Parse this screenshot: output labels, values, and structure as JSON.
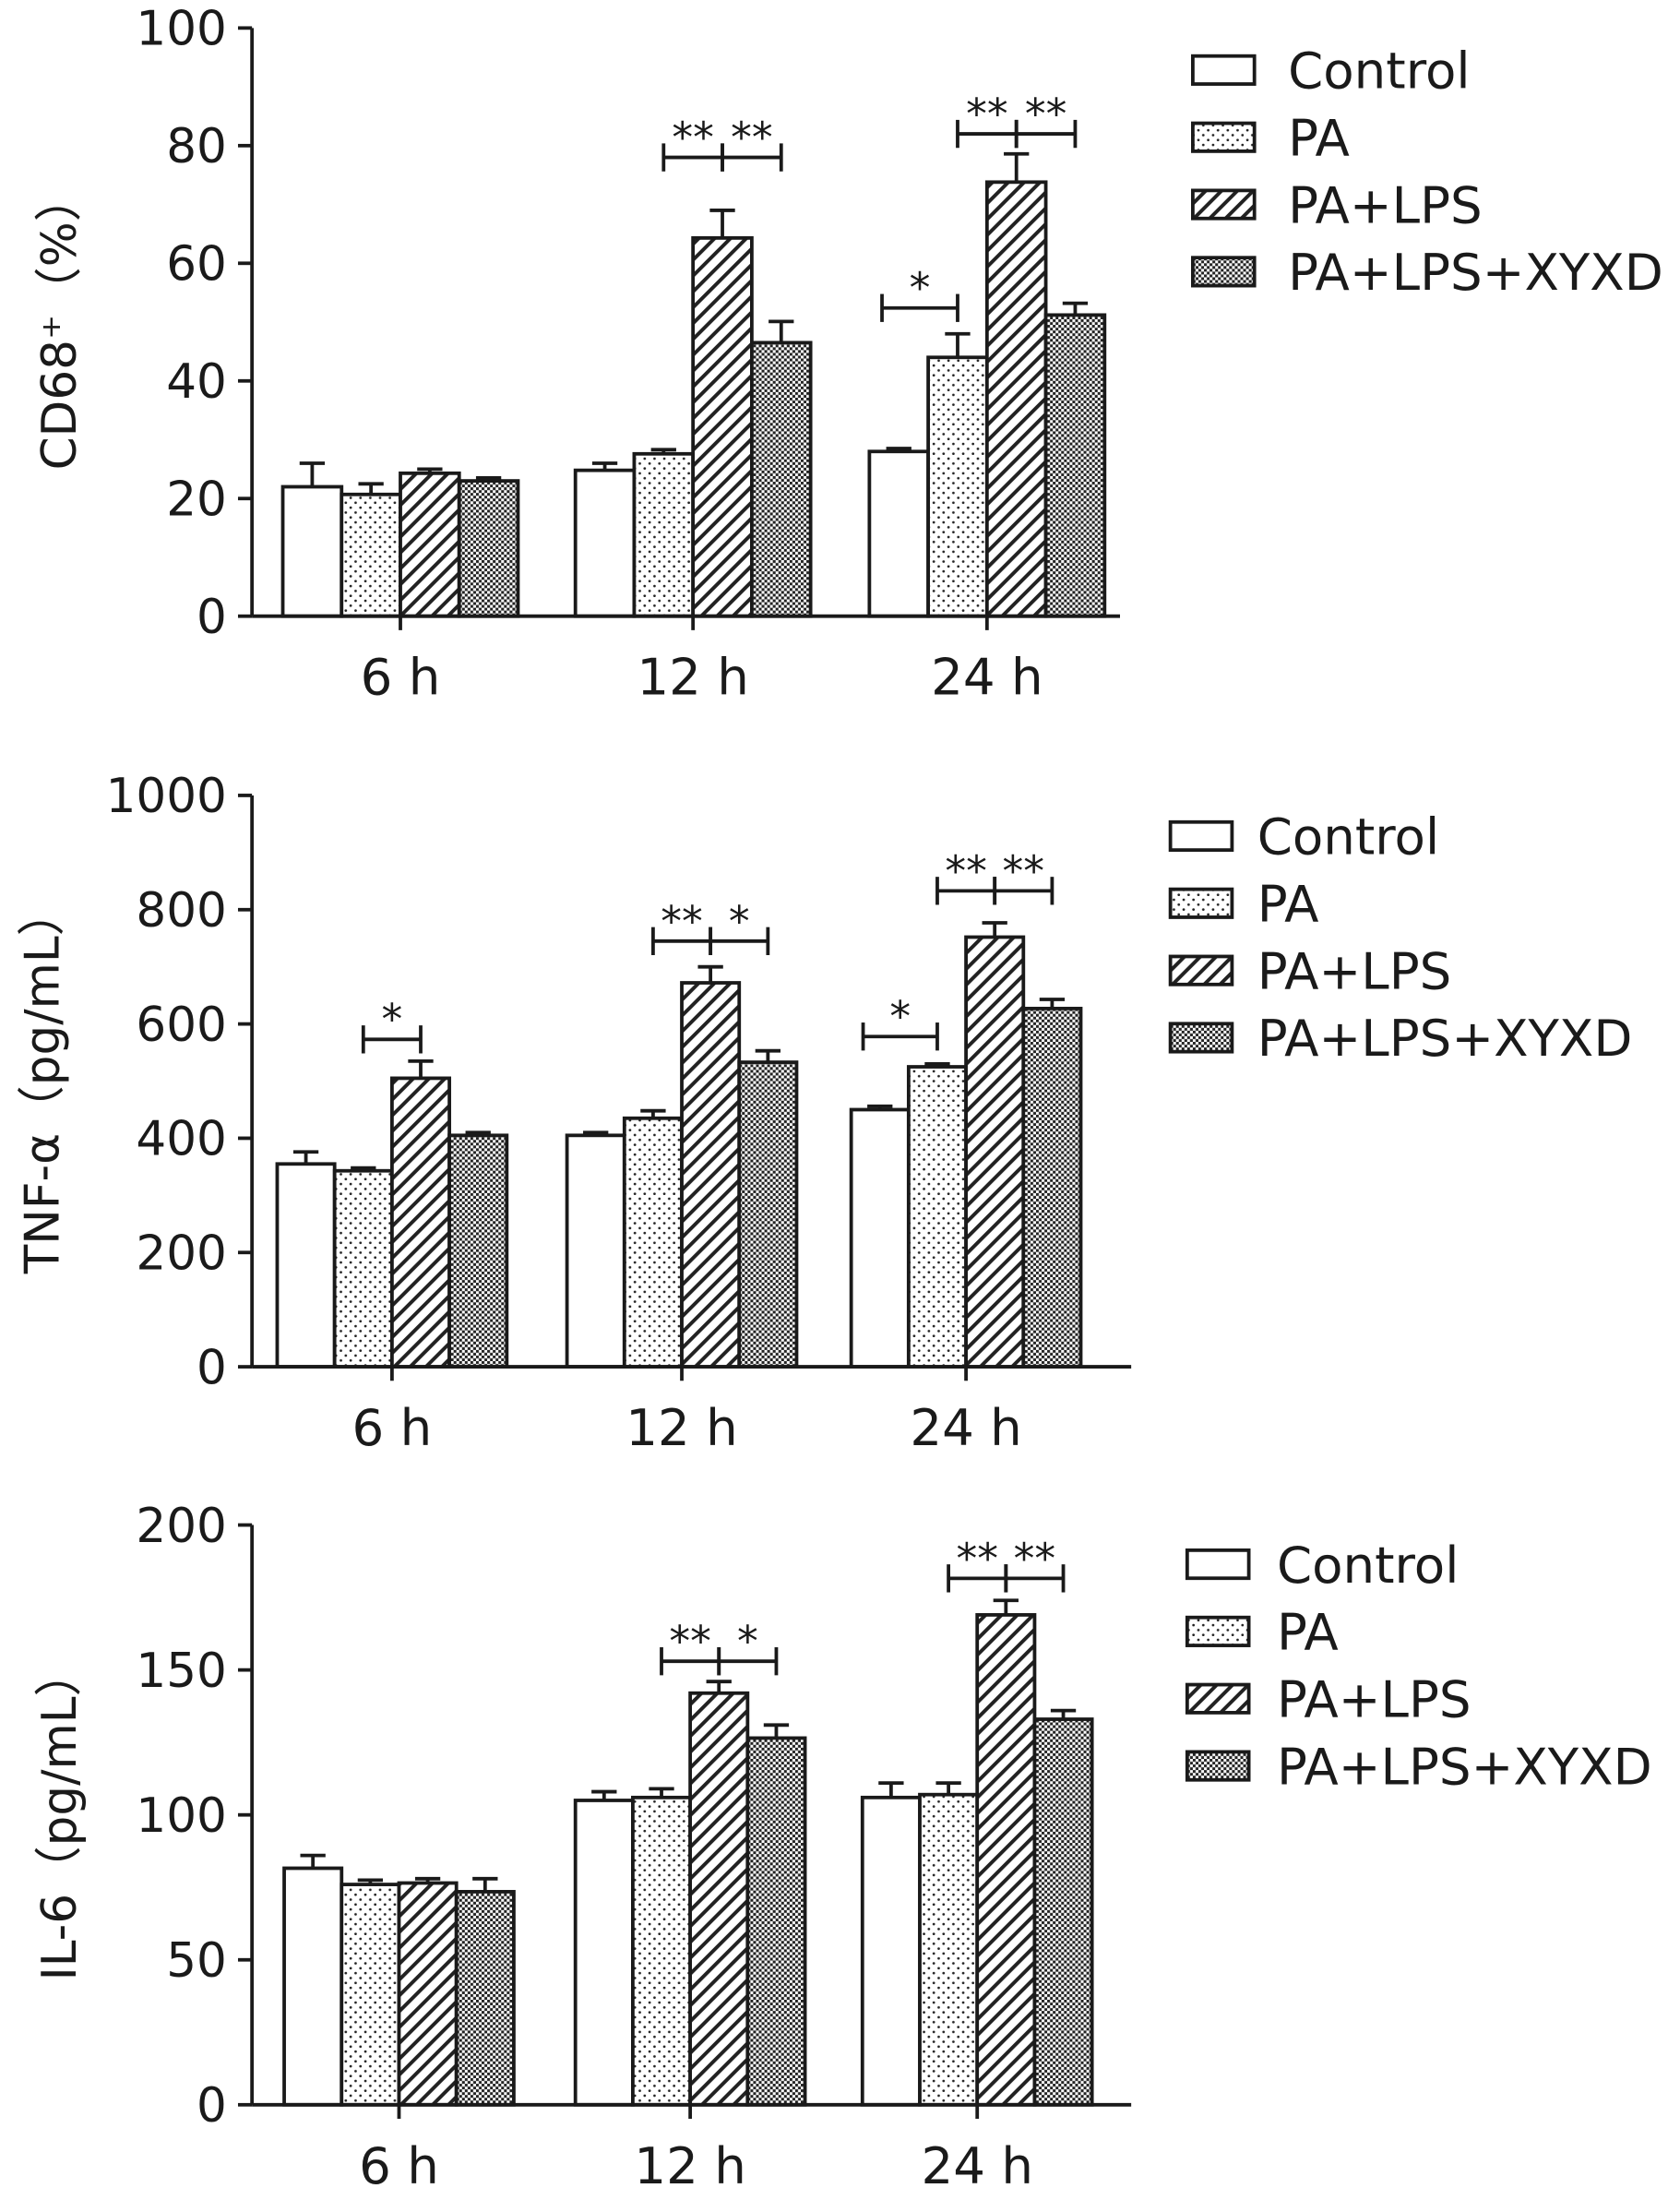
{
  "legend_entries": [
    "Control",
    "PA",
    "PA+LPS",
    "PA+LPS+XYXD"
  ],
  "patterns": [
    "open",
    "dotted",
    "diagonal-hatch",
    "checkered"
  ],
  "colors": {
    "stroke": "#1a1a1a",
    "fill": "#ffffff"
  },
  "chart_data": [
    {
      "type": "bar",
      "ylabel": "CD68⁺（%）",
      "ylim": [
        0,
        100
      ],
      "yticks": [
        0,
        20,
        40,
        60,
        80,
        100
      ],
      "categories": [
        "6 h",
        "12 h",
        "24 h"
      ],
      "legend_placement": "top-right",
      "series": [
        {
          "name": "Control",
          "values": [
            22,
            24.8,
            28
          ],
          "errors": [
            4,
            1.2,
            0.5
          ]
        },
        {
          "name": "PA",
          "values": [
            20.7,
            27.6,
            44
          ],
          "errors": [
            1.8,
            0.7,
            4
          ]
        },
        {
          "name": "PA+LPS",
          "values": [
            24.3,
            64.3,
            73.8
          ],
          "errors": [
            0.7,
            4.7,
            4.8
          ]
        },
        {
          "name": "PA+LPS+XYXD",
          "values": [
            23,
            46.5,
            51.2
          ],
          "errors": [
            0.5,
            3.6,
            2
          ]
        }
      ],
      "significance": [
        {
          "category": 1,
          "from": 1,
          "to": 2,
          "label": "**",
          "y": 78
        },
        {
          "category": 1,
          "from": 2,
          "to": 3,
          "label": "**",
          "y": 78
        },
        {
          "category": 2,
          "from": 0,
          "to": 1,
          "label": "*",
          "y": 52.4
        },
        {
          "category": 2,
          "from": 1,
          "to": 2,
          "label": "**",
          "y": 82
        },
        {
          "category": 2,
          "from": 2,
          "to": 3,
          "label": "**",
          "y": 82
        }
      ]
    },
    {
      "type": "bar",
      "ylabel": "TNF-α（pg/mL）",
      "ylim": [
        0,
        1000
      ],
      "yticks": [
        0,
        200,
        400,
        600,
        800,
        1000
      ],
      "categories": [
        "6 h",
        "12 h",
        "24 h"
      ],
      "legend_placement": "top-right",
      "series": [
        {
          "name": "Control",
          "values": [
            355,
            405,
            450
          ],
          "errors": [
            21,
            5,
            6
          ]
        },
        {
          "name": "PA",
          "values": [
            343,
            435,
            525
          ],
          "errors": [
            5,
            13,
            5
          ]
        },
        {
          "name": "PA+LPS",
          "values": [
            505,
            672,
            752
          ],
          "errors": [
            30,
            28,
            25
          ]
        },
        {
          "name": "PA+LPS+XYXD",
          "values": [
            405,
            533,
            627
          ],
          "errors": [
            5,
            20,
            16
          ]
        }
      ],
      "significance": [
        {
          "category": 0,
          "from": 1,
          "to": 2,
          "label": "*",
          "y": 573
        },
        {
          "category": 1,
          "from": 1,
          "to": 2,
          "label": "**",
          "y": 745
        },
        {
          "category": 1,
          "from": 2,
          "to": 3,
          "label": "*",
          "y": 745
        },
        {
          "category": 2,
          "from": 0,
          "to": 1,
          "label": "*",
          "y": 578
        },
        {
          "category": 2,
          "from": 1,
          "to": 2,
          "label": "**",
          "y": 833
        },
        {
          "category": 2,
          "from": 2,
          "to": 3,
          "label": "**",
          "y": 833
        }
      ]
    },
    {
      "type": "bar",
      "ylabel": "IL-6（pg/mL）",
      "ylim": [
        0,
        200
      ],
      "yticks": [
        0,
        50,
        100,
        150,
        200
      ],
      "categories": [
        "6 h",
        "12 h",
        "24 h"
      ],
      "legend_placement": "top-right",
      "series": [
        {
          "name": "Control",
          "values": [
            81.6,
            105,
            106
          ],
          "errors": [
            4.4,
            3,
            5
          ]
        },
        {
          "name": "PA",
          "values": [
            76,
            106,
            107
          ],
          "errors": [
            1.5,
            3,
            4
          ]
        },
        {
          "name": "PA+LPS",
          "values": [
            76.5,
            142,
            169
          ],
          "errors": [
            1.5,
            4,
            5
          ]
        },
        {
          "name": "PA+LPS+XYXD",
          "values": [
            73.5,
            126.5,
            133
          ],
          "errors": [
            4.5,
            4.5,
            3
          ]
        }
      ],
      "significance": [
        {
          "category": 1,
          "from": 1,
          "to": 2,
          "label": "**",
          "y": 153
        },
        {
          "category": 1,
          "from": 2,
          "to": 3,
          "label": "*",
          "y": 153
        },
        {
          "category": 2,
          "from": 1,
          "to": 2,
          "label": "**",
          "y": 181.6
        },
        {
          "category": 2,
          "from": 2,
          "to": 3,
          "label": "**",
          "y": 181.6
        }
      ]
    }
  ]
}
